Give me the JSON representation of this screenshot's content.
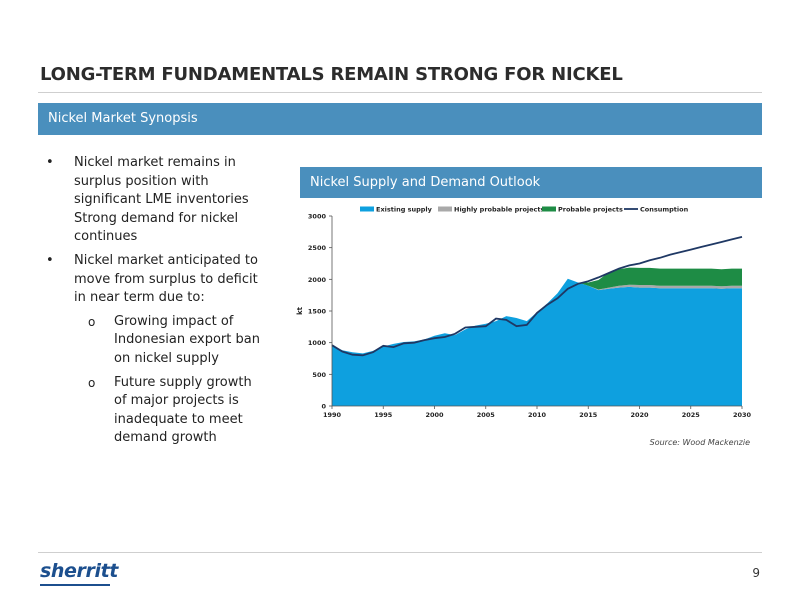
{
  "slide": {
    "title": "LONG-TERM FUNDAMENTALS REMAIN STRONG FOR NICKEL",
    "section_header": "Nickel Market Synopsis",
    "bullets": [
      "Nickel market remains in surplus position with significant LME inventories Strong demand for nickel continues",
      "Nickel market anticipated to move from surplus to deficit in near term due to:"
    ],
    "sub_bullets": [
      "Growing impact of Indonesian export ban on nickel supply",
      "Future supply growth of major projects is inadequate to meet demand growth"
    ],
    "bullet_marker": "•",
    "sub_bullet_marker": "o",
    "chart_header": "Nickel Supply and Demand Outlook",
    "source": "Source: Wood Mackenzie",
    "logo_text": "sherritt",
    "page_number": "9"
  },
  "colors": {
    "header_bar": "#4a8fbd",
    "existing_supply": "#0ea0df",
    "highly_probable": "#a9a9a9",
    "probable": "#1e8c45",
    "consumption": "#1f3864",
    "logo": "#1c4f8e"
  },
  "chart_data": {
    "type": "area",
    "title": "",
    "xlabel": "",
    "ylabel": "kt",
    "xlim": [
      1990,
      2030
    ],
    "ylim": [
      0,
      3000
    ],
    "x_ticks": [
      1990,
      1995,
      2000,
      2005,
      2010,
      2015,
      2020,
      2025,
      2030
    ],
    "y_ticks": [
      0,
      500,
      1000,
      1500,
      2000,
      2500,
      3000
    ],
    "grid": false,
    "legend_position": "top",
    "legend": [
      "Existing supply",
      "Highly probable projects",
      "Probable projects",
      "Consumption"
    ],
    "x": [
      1990,
      1991,
      1992,
      1993,
      1994,
      1995,
      1996,
      1997,
      1998,
      1999,
      2000,
      2001,
      2002,
      2003,
      2004,
      2005,
      2006,
      2007,
      2008,
      2009,
      2010,
      2011,
      2012,
      2013,
      2014,
      2015,
      2016,
      2017,
      2018,
      2019,
      2020,
      2021,
      2022,
      2023,
      2024,
      2025,
      2026,
      2027,
      2028,
      2029,
      2030
    ],
    "series": [
      {
        "name": "Existing supply",
        "type": "area",
        "values": [
          960,
          880,
          850,
          830,
          870,
          940,
          980,
          1010,
          1020,
          1050,
          1110,
          1150,
          1120,
          1210,
          1270,
          1300,
          1340,
          1420,
          1390,
          1340,
          1480,
          1620,
          1780,
          2010,
          1950,
          1900,
          1830,
          1850,
          1870,
          1880,
          1870,
          1870,
          1860,
          1860,
          1860,
          1860,
          1860,
          1860,
          1850,
          1860,
          1860
        ]
      },
      {
        "name": "Highly probable projects",
        "type": "area",
        "values": [
          0,
          0,
          0,
          0,
          0,
          0,
          0,
          0,
          0,
          0,
          0,
          0,
          0,
          0,
          0,
          0,
          0,
          0,
          0,
          0,
          0,
          0,
          0,
          0,
          0,
          0,
          10,
          20,
          30,
          35,
          40,
          40,
          40,
          40,
          40,
          40,
          40,
          40,
          40,
          40,
          40
        ]
      },
      {
        "name": "Probable projects",
        "type": "area",
        "values": [
          0,
          0,
          0,
          0,
          0,
          0,
          0,
          0,
          0,
          0,
          0,
          0,
          0,
          0,
          0,
          0,
          0,
          0,
          0,
          0,
          0,
          0,
          0,
          0,
          0,
          50,
          150,
          240,
          260,
          270,
          270,
          270,
          270,
          270,
          270,
          270,
          270,
          270,
          270,
          270,
          270
        ]
      },
      {
        "name": "Consumption",
        "type": "line",
        "values": [
          960,
          860,
          810,
          800,
          850,
          950,
          930,
          990,
          1000,
          1040,
          1070,
          1090,
          1140,
          1240,
          1250,
          1260,
          1380,
          1360,
          1260,
          1280,
          1470,
          1600,
          1700,
          1850,
          1930,
          1970,
          2030,
          2100,
          2170,
          2220,
          2250,
          2300,
          2340,
          2390,
          2430,
          2470,
          2510,
          2550,
          2590,
          2630,
          2670
        ]
      }
    ]
  }
}
